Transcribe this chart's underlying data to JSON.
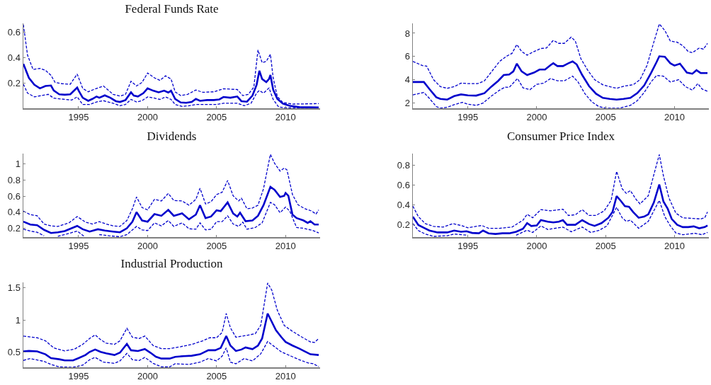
{
  "chart_data": [
    {
      "type": "line",
      "title": "Federal Funds Rate",
      "xlim": [
        1991,
        2012.5
      ],
      "xticks": [
        1995,
        2000,
        2005,
        2010
      ],
      "ylim": [
        0,
        0.67
      ],
      "yticks": [
        0.2,
        0.4,
        0.6
      ],
      "grid": false,
      "series": [
        {
          "color": "#0000cc",
          "line_style": "solid",
          "x": [
            1991.0,
            1991.4,
            1991.8,
            1992.2,
            1992.6,
            1993.0,
            1993.2,
            1993.6,
            1994.0,
            1994.4,
            1994.9,
            1995.0,
            1995.3,
            1995.7,
            1996.0,
            1996.3,
            1996.5,
            1996.9,
            1997.3,
            1997.7,
            1998.0,
            1998.4,
            1998.8,
            1999.0,
            1999.3,
            1999.7,
            2000.0,
            2000.4,
            2000.8,
            2001.2,
            2001.5,
            2001.7,
            2002.0,
            2002.4,
            2002.8,
            2003.2,
            2003.5,
            2003.8,
            2004.3,
            2004.8,
            2005.2,
            2005.5,
            2006.0,
            2006.5,
            2006.8,
            2007.2,
            2007.6,
            2007.9,
            2008.1,
            2008.3,
            2008.6,
            2008.8,
            2008.9,
            2009.1,
            2009.4,
            2009.8,
            2010.3,
            2011.0,
            2012.4
          ],
          "values": [
            0.35,
            0.24,
            0.185,
            0.157,
            0.176,
            0.18,
            0.14,
            0.11,
            0.107,
            0.11,
            0.163,
            0.14,
            0.083,
            0.059,
            0.074,
            0.093,
            0.083,
            0.102,
            0.083,
            0.056,
            0.05,
            0.065,
            0.126,
            0.1,
            0.093,
            0.12,
            0.157,
            0.139,
            0.126,
            0.139,
            0.124,
            0.139,
            0.074,
            0.046,
            0.043,
            0.05,
            0.074,
            0.059,
            0.065,
            0.065,
            0.07,
            0.089,
            0.083,
            0.093,
            0.056,
            0.052,
            0.1,
            0.185,
            0.296,
            0.231,
            0.207,
            0.231,
            0.263,
            0.148,
            0.074,
            0.037,
            0.019,
            0.009,
            0.007
          ]
        },
        {
          "color": "#0000cc",
          "line_style": "dashed",
          "x": [
            1991.0,
            1991.3,
            1991.7,
            1992.2,
            1992.6,
            1993.0,
            1993.3,
            1993.8,
            1994.4,
            1994.9,
            1995.3,
            1995.7,
            1996.1,
            1996.8,
            1997.5,
            1998.0,
            1998.4,
            1998.8,
            1999.2,
            1999.6,
            2000.0,
            2000.5,
            2000.9,
            2001.3,
            2001.7,
            2002.0,
            2002.4,
            2002.9,
            2003.5,
            2004.0,
            2004.8,
            2005.5,
            2006.5,
            2006.9,
            2007.3,
            2007.7,
            2008.0,
            2008.3,
            2008.6,
            2008.9,
            2009.1,
            2009.4,
            2009.8,
            2010.5,
            2012.4
          ],
          "values": [
            0.66,
            0.42,
            0.306,
            0.315,
            0.3,
            0.26,
            0.204,
            0.194,
            0.19,
            0.27,
            0.157,
            0.13,
            0.148,
            0.176,
            0.11,
            0.096,
            0.11,
            0.213,
            0.176,
            0.204,
            0.278,
            0.24,
            0.22,
            0.256,
            0.231,
            0.13,
            0.1,
            0.11,
            0.144,
            0.126,
            0.13,
            0.154,
            0.148,
            0.1,
            0.11,
            0.167,
            0.46,
            0.36,
            0.37,
            0.426,
            0.24,
            0.093,
            0.046,
            0.033,
            0.037
          ]
        },
        {
          "color": "#0000cc",
          "line_style": "dashed",
          "x": [
            1991.0,
            1991.3,
            1991.8,
            1992.3,
            1992.8,
            1993.2,
            1994.0,
            1994.5,
            1994.9,
            1995.3,
            1995.8,
            1996.3,
            1996.8,
            1997.5,
            1998.0,
            1998.4,
            1998.8,
            1999.2,
            1999.6,
            2000.0,
            2000.5,
            2000.9,
            2001.3,
            2001.7,
            2002.0,
            2002.5,
            2003.0,
            2003.5,
            2004.0,
            2005.0,
            2005.5,
            2006.5,
            2007.0,
            2007.5,
            2007.9,
            2008.1,
            2008.4,
            2008.8,
            2009.1,
            2009.5,
            2010.0,
            2012.4
          ],
          "values": [
            0.19,
            0.12,
            0.09,
            0.1,
            0.11,
            0.08,
            0.07,
            0.065,
            0.09,
            0.03,
            0.03,
            0.05,
            0.06,
            0.04,
            0.02,
            0.03,
            0.07,
            0.05,
            0.06,
            0.09,
            0.08,
            0.07,
            0.09,
            0.07,
            0.03,
            0.015,
            0.02,
            0.03,
            0.03,
            0.03,
            0.04,
            0.04,
            0.02,
            0.04,
            0.12,
            0.14,
            0.12,
            0.16,
            0.07,
            0.01,
            0.003,
            0.002
          ]
        }
      ]
    },
    {
      "type": "line",
      "xlim": [
        1991,
        2012.5
      ],
      "xticks": [
        1995,
        2000,
        2005,
        2010
      ],
      "ylim": [
        1.55,
        8.85
      ],
      "yticks": [
        2,
        4,
        6,
        8
      ],
      "grid": false,
      "series": [
        {
          "color": "#0000cc",
          "line_style": "solid",
          "x": [
            1991.0,
            1991.8,
            1992.2,
            1992.7,
            1993.0,
            1993.5,
            1994.0,
            1994.5,
            1995.0,
            1995.6,
            1996.2,
            1996.7,
            1997.2,
            1997.6,
            1998.0,
            1998.3,
            1998.55,
            1998.9,
            1999.3,
            1999.8,
            2000.2,
            2000.6,
            2001.0,
            2001.2,
            2001.5,
            2001.9,
            2002.3,
            2002.6,
            2002.9,
            2003.3,
            2003.8,
            2004.3,
            2004.8,
            2005.3,
            2005.8,
            2006.3,
            2006.8,
            2007.3,
            2007.8,
            2008.3,
            2008.7,
            2008.9,
            2009.3,
            2009.7,
            2010.0,
            2010.4,
            2010.9,
            2011.3,
            2011.6,
            2011.9,
            2012.4
          ],
          "values": [
            3.81,
            3.81,
            3.21,
            2.5,
            2.36,
            2.3,
            2.6,
            2.74,
            2.66,
            2.64,
            2.85,
            3.41,
            3.91,
            4.41,
            4.45,
            4.72,
            5.38,
            4.72,
            4.41,
            4.62,
            4.88,
            4.88,
            5.26,
            5.42,
            5.18,
            5.18,
            5.42,
            5.58,
            5.32,
            4.41,
            3.45,
            2.8,
            2.44,
            2.36,
            2.3,
            2.36,
            2.44,
            2.85,
            3.51,
            4.58,
            5.52,
            6.02,
            5.98,
            5.42,
            5.22,
            5.38,
            4.62,
            4.52,
            4.82,
            4.58,
            4.58
          ]
        },
        {
          "color": "#0000cc",
          "line_style": "dashed",
          "x": [
            1991.0,
            1991.7,
            1992.0,
            1992.5,
            1993.0,
            1993.5,
            1994.0,
            1994.5,
            1995.0,
            1995.7,
            1996.2,
            1996.8,
            1997.3,
            1997.8,
            1998.2,
            1998.55,
            1998.9,
            1999.3,
            1999.8,
            2000.3,
            2000.7,
            2001.2,
            2001.6,
            2002.0,
            2002.5,
            2002.8,
            2003.2,
            2003.7,
            2004.2,
            2004.8,
            2005.3,
            2005.8,
            2006.4,
            2007.0,
            2007.5,
            2008.0,
            2008.5,
            2008.9,
            2009.3,
            2009.7,
            2010.2,
            2010.6,
            2011.0,
            2011.3,
            2011.8,
            2012.1,
            2012.4
          ],
          "values": [
            5.58,
            5.22,
            5.18,
            4.01,
            3.41,
            3.27,
            3.41,
            3.71,
            3.67,
            3.67,
            3.91,
            4.82,
            5.58,
            6.02,
            6.27,
            7.03,
            6.43,
            6.12,
            6.43,
            6.69,
            6.73,
            7.39,
            7.13,
            7.13,
            7.67,
            7.33,
            5.82,
            4.82,
            4.01,
            3.57,
            3.41,
            3.27,
            3.47,
            3.57,
            4.01,
            5.22,
            7.23,
            8.8,
            8.24,
            7.33,
            7.23,
            6.93,
            6.43,
            6.33,
            6.73,
            6.63,
            7.13
          ]
        },
        {
          "color": "#0000cc",
          "line_style": "dashed",
          "x": [
            1991.0,
            1991.8,
            1992.2,
            1992.7,
            1993.0,
            1993.5,
            1994.0,
            1994.6,
            1995.0,
            1995.6,
            1996.1,
            1996.7,
            1997.3,
            1997.7,
            1998.0,
            1998.6,
            1999.0,
            1999.5,
            2000.0,
            2000.5,
            2001.0,
            2001.5,
            2002.0,
            2002.6,
            2003.0,
            2003.5,
            2004.0,
            2004.5,
            2005.0,
            2006.0,
            2006.8,
            2007.3,
            2007.8,
            2008.3,
            2008.7,
            2009.2,
            2009.7,
            2010.3,
            2010.8,
            2011.3,
            2011.7,
            2012.0,
            2012.4
          ],
          "values": [
            2.7,
            2.91,
            2.4,
            1.7,
            1.56,
            1.64,
            1.86,
            2.06,
            1.9,
            1.8,
            2.0,
            2.6,
            3.11,
            3.37,
            3.35,
            4.11,
            3.31,
            3.15,
            3.61,
            3.71,
            4.11,
            3.91,
            3.91,
            4.31,
            3.81,
            2.8,
            2.1,
            1.7,
            1.56,
            1.56,
            1.8,
            2.2,
            2.91,
            3.81,
            4.37,
            4.31,
            3.81,
            4.01,
            3.41,
            3.11,
            3.67,
            3.21,
            3.01
          ]
        }
      ]
    },
    {
      "type": "line",
      "title": "Dividends",
      "xlim": [
        1991,
        2012.5
      ],
      "xticks": [
        1995,
        2000,
        2005,
        2010
      ],
      "ylim": [
        0.09,
        1.13
      ],
      "yticks": [
        0.2,
        0.4,
        0.6,
        0.8,
        1
      ],
      "grid": false,
      "series": [
        {
          "color": "#0000cc",
          "line_style": "solid",
          "x": [
            1991.0,
            1991.5,
            1992.0,
            1992.5,
            1993.0,
            1993.5,
            1994.0,
            1994.4,
            1994.9,
            1995.3,
            1995.8,
            1996.4,
            1996.9,
            1997.5,
            1998.0,
            1998.5,
            1998.9,
            1999.2,
            1999.6,
            2000.0,
            2000.5,
            2001.0,
            2001.5,
            2001.9,
            2002.5,
            2003.0,
            2003.5,
            2003.8,
            2004.2,
            2004.6,
            2005.0,
            2005.3,
            2005.8,
            2006.2,
            2006.5,
            2006.7,
            2007.1,
            2007.6,
            2008.0,
            2008.4,
            2008.9,
            2009.2,
            2009.6,
            2009.9,
            2010.0,
            2010.2,
            2010.5,
            2010.8,
            2011.3,
            2011.6,
            2011.8,
            2012.1,
            2012.4
          ],
          "values": [
            0.282,
            0.247,
            0.238,
            0.18,
            0.141,
            0.15,
            0.165,
            0.194,
            0.229,
            0.188,
            0.159,
            0.188,
            0.171,
            0.159,
            0.15,
            0.2,
            0.282,
            0.4,
            0.297,
            0.282,
            0.376,
            0.355,
            0.429,
            0.355,
            0.385,
            0.311,
            0.37,
            0.487,
            0.326,
            0.346,
            0.423,
            0.414,
            0.522,
            0.385,
            0.346,
            0.393,
            0.288,
            0.297,
            0.355,
            0.487,
            0.716,
            0.678,
            0.59,
            0.604,
            0.639,
            0.604,
            0.37,
            0.326,
            0.297,
            0.267,
            0.288,
            0.247,
            0.247
          ]
        },
        {
          "color": "#0000cc",
          "line_style": "dashed",
          "x": [
            1991.0,
            1991.5,
            1992.0,
            1992.5,
            1993.0,
            1993.5,
            1994.3,
            1994.9,
            1995.5,
            1996.0,
            1996.5,
            1997.0,
            1997.5,
            1998.0,
            1998.5,
            1998.9,
            1999.2,
            1999.6,
            2000.0,
            2000.5,
            2001.0,
            2001.5,
            2001.9,
            2002.5,
            2003.0,
            2003.5,
            2003.8,
            2004.2,
            2004.6,
            2005.0,
            2005.4,
            2005.8,
            2006.2,
            2006.6,
            2006.8,
            2007.2,
            2007.6,
            2008.0,
            2008.4,
            2008.9,
            2009.2,
            2009.6,
            2009.9,
            2010.1,
            2010.5,
            2010.9,
            2011.4,
            2011.9,
            2012.2,
            2012.4
          ],
          "values": [
            0.414,
            0.37,
            0.355,
            0.253,
            0.229,
            0.223,
            0.267,
            0.346,
            0.276,
            0.253,
            0.282,
            0.253,
            0.229,
            0.223,
            0.297,
            0.443,
            0.59,
            0.458,
            0.429,
            0.56,
            0.54,
            0.634,
            0.546,
            0.54,
            0.487,
            0.56,
            0.698,
            0.502,
            0.531,
            0.619,
            0.648,
            0.795,
            0.604,
            0.54,
            0.575,
            0.443,
            0.452,
            0.487,
            0.692,
            1.12,
            1.01,
            0.912,
            0.95,
            0.927,
            0.619,
            0.493,
            0.443,
            0.414,
            0.376,
            0.429
          ]
        },
        {
          "color": "#0000cc",
          "line_style": "dashed",
          "x": [
            1991.0,
            1991.5,
            1992.0,
            1992.5,
            1993.0,
            1993.5,
            1994.3,
            1994.9,
            1995.4,
            1996.0,
            1996.5,
            1997.2,
            1998.0,
            1998.5,
            1999.2,
            1999.6,
            2000.0,
            2000.5,
            2001.0,
            2001.5,
            2001.9,
            2002.5,
            2003.0,
            2003.5,
            2003.8,
            2004.2,
            2004.6,
            2005.0,
            2005.4,
            2005.8,
            2006.2,
            2006.6,
            2006.9,
            2007.2,
            2007.8,
            2008.3,
            2008.9,
            2009.2,
            2009.6,
            2010.0,
            2010.3,
            2010.8,
            2011.3,
            2012.0,
            2012.4
          ],
          "values": [
            0.188,
            0.165,
            0.15,
            0.106,
            null,
            0.1,
            0.136,
            0.165,
            0.1,
            null,
            0.121,
            0.106,
            0.095,
            0.121,
            0.223,
            0.18,
            0.171,
            0.267,
            0.229,
            0.297,
            0.223,
            0.267,
            0.194,
            0.188,
            0.267,
            0.18,
            0.188,
            0.282,
            0.282,
            0.355,
            0.253,
            0.223,
            0.276,
            0.188,
            0.209,
            0.267,
            0.522,
            0.493,
            0.393,
            0.464,
            0.414,
            0.209,
            0.2,
            0.171,
            0.141
          ]
        }
      ]
    },
    {
      "type": "line",
      "title": "Consumer Price Index",
      "xlim": [
        1991,
        2012.5
      ],
      "xticks": [
        1995,
        2000,
        2005,
        2010
      ],
      "ylim": [
        0.078,
        0.92
      ],
      "yticks": [
        0.2,
        0.4,
        0.6,
        0.8
      ],
      "grid": false,
      "series": [
        {
          "color": "#0000cc",
          "line_style": "solid",
          "x": [
            1991.0,
            1991.4,
            1991.8,
            1992.2,
            1992.8,
            1993.5,
            1994.0,
            1994.5,
            1994.9,
            1995.3,
            1995.8,
            1996.1,
            1996.5,
            1997.0,
            1997.5,
            1998.0,
            1998.5,
            1999.0,
            1999.3,
            1999.6,
            2000.0,
            2000.3,
            2000.8,
            2001.2,
            2001.6,
            2001.9,
            2002.2,
            2002.8,
            2003.3,
            2003.8,
            2004.2,
            2004.7,
            2005.2,
            2005.5,
            2005.8,
            2006.1,
            2006.4,
            2006.7,
            2007.0,
            2007.4,
            2007.8,
            2008.1,
            2008.5,
            2008.9,
            2009.2,
            2009.5,
            2009.8,
            2010.2,
            2010.6,
            2011.0,
            2011.4,
            2011.8,
            2012.2,
            2012.4
          ],
          "values": [
            0.284,
            0.2,
            0.172,
            0.144,
            0.125,
            0.125,
            0.144,
            0.132,
            0.137,
            0.12,
            0.116,
            0.144,
            0.116,
            0.109,
            0.116,
            0.116,
            0.132,
            0.162,
            0.219,
            0.19,
            0.195,
            0.249,
            0.233,
            0.226,
            0.233,
            0.249,
            0.202,
            0.202,
            0.249,
            0.209,
            0.191,
            0.219,
            0.273,
            0.331,
            0.491,
            0.444,
            0.39,
            0.383,
            0.331,
            0.273,
            0.284,
            0.308,
            0.425,
            0.608,
            0.437,
            0.366,
            0.261,
            0.202,
            0.179,
            0.179,
            0.186,
            0.167,
            0.179,
            0.195
          ]
        },
        {
          "color": "#0000cc",
          "line_style": "dashed",
          "x": [
            1991.0,
            1991.4,
            1991.9,
            1992.5,
            1993.2,
            1993.9,
            1994.5,
            1995.0,
            1996.0,
            1996.5,
            1997.3,
            1998.2,
            1999.0,
            1999.3,
            1999.7,
            2000.3,
            2001.0,
            2001.9,
            2002.3,
            2002.8,
            2003.3,
            2003.8,
            2004.3,
            2004.9,
            2005.4,
            2005.8,
            2006.2,
            2006.5,
            2006.8,
            2007.2,
            2007.5,
            2008.1,
            2008.5,
            2008.9,
            2009.2,
            2009.6,
            2010.1,
            2010.6,
            2011.3,
            2011.9,
            2012.2,
            2012.4
          ],
          "values": [
            0.39,
            0.284,
            0.214,
            0.186,
            0.179,
            0.214,
            0.195,
            0.172,
            0.195,
            0.167,
            0.167,
            0.179,
            0.249,
            0.308,
            0.273,
            0.355,
            0.343,
            0.359,
            0.296,
            0.303,
            0.355,
            0.296,
            0.296,
            0.343,
            0.448,
            0.741,
            0.566,
            0.519,
            0.547,
            0.46,
            0.413,
            0.495,
            0.706,
            0.91,
            0.695,
            0.472,
            0.32,
            0.273,
            0.266,
            0.261,
            0.273,
            0.331
          ]
        },
        {
          "color": "#0000cc",
          "line_style": "dashed",
          "x": [
            1991.0,
            1991.4,
            1991.9,
            1992.5,
            1993.5,
            1994.0,
            1995.0,
            1995.5,
            1996.1,
            1996.7,
            1997.5,
            1998.5,
            1999.3,
            1999.7,
            2000.3,
            2000.8,
            2001.9,
            2002.5,
            2003.3,
            2003.9,
            2004.5,
            2005.1,
            2005.8,
            2006.2,
            2006.5,
            2006.8,
            2007.4,
            2008.1,
            2008.9,
            2009.3,
            2009.7,
            2010.1,
            2010.6,
            2011.5,
            2012.0,
            2012.4
          ],
          "values": [
            0.214,
            0.144,
            0.109,
            0.085,
            0.092,
            0.109,
            0.097,
            null,
            null,
            null,
            null,
            0.097,
            0.148,
            0.125,
            0.191,
            0.155,
            0.179,
            0.132,
            0.179,
            0.125,
            0.144,
            0.191,
            0.378,
            0.273,
            0.237,
            0.249,
            0.167,
            0.237,
            0.448,
            0.284,
            0.191,
            0.12,
            0.102,
            0.116,
            0.102,
            0.125
          ]
        }
      ]
    },
    {
      "type": "line",
      "title": "Industrial Production",
      "xlim": [
        1991,
        2012.5
      ],
      "xticks": [
        1995,
        2000,
        2005,
        2010
      ],
      "ylim": [
        0.27,
        1.58
      ],
      "yticks": [
        0.5,
        1,
        1.5
      ],
      "grid": false,
      "series": [
        {
          "color": "#0000cc",
          "line_style": "solid",
          "x": [
            1991.0,
            1991.4,
            1992.0,
            1992.6,
            1993.0,
            1993.6,
            1994.0,
            1994.6,
            1995.0,
            1995.5,
            1995.8,
            1996.2,
            1996.6,
            1997.0,
            1997.6,
            1998.0,
            1998.5,
            1998.8,
            1999.3,
            1999.8,
            2000.2,
            2000.6,
            2001.0,
            2001.6,
            2002.0,
            2002.6,
            2003.2,
            2003.8,
            2004.4,
            2004.9,
            2005.3,
            2005.7,
            2006.0,
            2006.4,
            2006.8,
            2007.1,
            2007.6,
            2008.0,
            2008.3,
            2008.7,
            2009.0,
            2009.3,
            2009.7,
            2010.0,
            2010.5,
            2011.0,
            2011.4,
            2011.8,
            2012.4
          ],
          "values": [
            0.515,
            0.522,
            0.515,
            0.471,
            0.412,
            0.394,
            0.376,
            0.376,
            0.412,
            0.46,
            0.507,
            0.544,
            0.507,
            0.485,
            0.46,
            0.496,
            0.631,
            0.533,
            0.522,
            0.551,
            0.496,
            0.434,
            0.405,
            0.405,
            0.431,
            0.442,
            0.449,
            0.471,
            0.533,
            0.533,
            0.569,
            0.752,
            0.606,
            0.522,
            0.544,
            0.577,
            0.551,
            0.606,
            0.715,
            1.1,
            0.971,
            0.843,
            0.734,
            0.661,
            0.606,
            0.558,
            0.515,
            0.471,
            0.46
          ]
        },
        {
          "color": "#0000cc",
          "line_style": "dashed",
          "x": [
            1991.0,
            1992.0,
            1992.6,
            1993.2,
            1994.0,
            1994.7,
            1995.3,
            1995.8,
            1996.2,
            1996.6,
            1997.0,
            1997.6,
            1998.0,
            1998.5,
            1998.9,
            1999.4,
            1999.8,
            2000.4,
            2001.0,
            2001.6,
            2002.4,
            2003.2,
            2004.0,
            2004.5,
            2005.0,
            2005.4,
            2005.7,
            2006.0,
            2006.4,
            2007.2,
            2007.8,
            2008.2,
            2008.7,
            2009.0,
            2009.4,
            2009.9,
            2010.5,
            2011.2,
            2011.8,
            2012.1,
            2012.4
          ],
          "values": [
            0.752,
            0.726,
            0.679,
            0.569,
            0.522,
            0.551,
            0.624,
            0.715,
            0.77,
            0.697,
            0.642,
            0.624,
            0.679,
            0.872,
            0.734,
            0.715,
            0.752,
            0.606,
            0.558,
            0.558,
            0.588,
            0.624,
            0.679,
            0.726,
            0.726,
            0.807,
            1.1,
            0.88,
            0.734,
            0.763,
            0.788,
            0.916,
            1.57,
            1.46,
            1.15,
            0.916,
            0.825,
            0.734,
            0.661,
            0.653,
            0.715
          ]
        },
        {
          "color": "#0000cc",
          "line_style": "dashed",
          "x": [
            1991.0,
            1991.5,
            1992.5,
            1993.0,
            1993.6,
            1994.6,
            1995.3,
            1995.8,
            1996.2,
            1996.8,
            1997.6,
            1998.0,
            1998.5,
            1998.9,
            1999.4,
            1999.8,
            2000.4,
            2001.0,
            2001.6,
            2002.0,
            2003.0,
            2003.8,
            2004.4,
            2005.0,
            2005.4,
            2005.7,
            2006.0,
            2006.4,
            2007.0,
            2007.6,
            2008.2,
            2008.7,
            2009.2,
            2009.7,
            2010.4,
            2011.0,
            2011.6,
            2012.0,
            2012.4
          ],
          "values": [
            0.376,
            0.405,
            0.361,
            0.314,
            0.277,
            0.27,
            0.303,
            0.387,
            0.423,
            0.35,
            0.332,
            0.369,
            0.485,
            0.387,
            0.376,
            0.423,
            0.332,
            0.277,
            0.277,
            0.325,
            0.314,
            0.35,
            0.405,
            0.369,
            0.442,
            0.569,
            0.35,
            0.325,
            0.405,
            0.369,
            0.478,
            0.668,
            0.588,
            0.507,
            0.442,
            0.387,
            0.339,
            0.325,
            0.281
          ]
        }
      ]
    }
  ]
}
